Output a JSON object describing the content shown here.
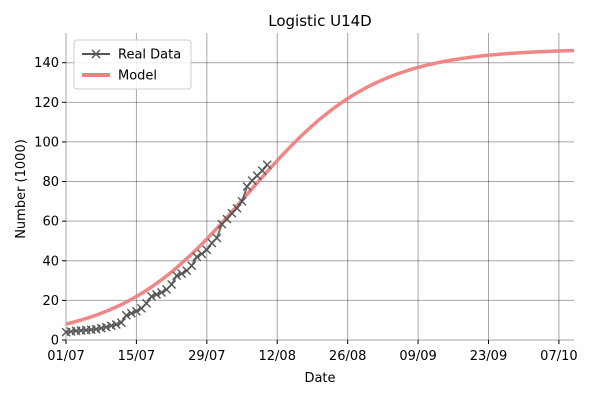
{
  "chart_data": {
    "type": "line",
    "title": "Logistic U14D",
    "xlabel": "Date",
    "ylabel": "Number (1000)",
    "x_axis": {
      "unit": "day-of-year-2020",
      "range": [
        "01/07",
        "10/10"
      ],
      "ticks": [
        {
          "label": "01/07",
          "date": "2020-07-01"
        },
        {
          "label": "15/07",
          "date": "2020-07-15"
        },
        {
          "label": "29/07",
          "date": "2020-07-29"
        },
        {
          "label": "12/08",
          "date": "2020-08-12"
        },
        {
          "label": "26/08",
          "date": "2020-08-26"
        },
        {
          "label": "09/09",
          "date": "2020-09-09"
        },
        {
          "label": "23/09",
          "date": "2020-09-23"
        },
        {
          "label": "07/10",
          "date": "2020-10-07"
        }
      ]
    },
    "ylim": [
      0,
      155
    ],
    "yticks": [
      0,
      20,
      40,
      60,
      80,
      100,
      120,
      140
    ],
    "grid": true,
    "legend_position": "top-left",
    "series": [
      {
        "name": "Real Data",
        "color": "#555555",
        "marker": "x",
        "points": [
          [
            "2020-07-01",
            4.0
          ],
          [
            "2020-07-02",
            4.3
          ],
          [
            "2020-07-03",
            4.6
          ],
          [
            "2020-07-04",
            4.8
          ],
          [
            "2020-07-05",
            5.0
          ],
          [
            "2020-07-06",
            5.2
          ],
          [
            "2020-07-07",
            5.5
          ],
          [
            "2020-07-08",
            6.0
          ],
          [
            "2020-07-09",
            6.5
          ],
          [
            "2020-07-10",
            7.2
          ],
          [
            "2020-07-11",
            7.8
          ],
          [
            "2020-07-12",
            8.8
          ],
          [
            "2020-07-13",
            12.5
          ],
          [
            "2020-07-14",
            13.5
          ],
          [
            "2020-07-15",
            14.5
          ],
          [
            "2020-07-16",
            16.0
          ],
          [
            "2020-07-17",
            18.5
          ],
          [
            "2020-07-18",
            22.0
          ],
          [
            "2020-07-19",
            23.0
          ],
          [
            "2020-07-20",
            24.0
          ],
          [
            "2020-07-21",
            25.5
          ],
          [
            "2020-07-22",
            28.0
          ],
          [
            "2020-07-23",
            32.5
          ],
          [
            "2020-07-24",
            33.5
          ],
          [
            "2020-07-25",
            35.0
          ],
          [
            "2020-07-26",
            37.5
          ],
          [
            "2020-07-27",
            42.0
          ],
          [
            "2020-07-28",
            43.5
          ],
          [
            "2020-07-29",
            45.5
          ],
          [
            "2020-07-30",
            49.0
          ],
          [
            "2020-07-31",
            51.5
          ],
          [
            "2020-08-01",
            58.5
          ],
          [
            "2020-08-02",
            61.0
          ],
          [
            "2020-08-03",
            64.0
          ],
          [
            "2020-08-04",
            66.5
          ],
          [
            "2020-08-05",
            70.0
          ],
          [
            "2020-08-06",
            77.5
          ],
          [
            "2020-08-07",
            80.5
          ],
          [
            "2020-08-08",
            83.0
          ],
          [
            "2020-08-09",
            85.5
          ],
          [
            "2020-08-10",
            88.5
          ]
        ]
      },
      {
        "name": "Model",
        "color": "#f08080",
        "model": "logistic",
        "K": 147.0,
        "r": 0.079,
        "midpoint_date": "2020-08-06",
        "start": "2020-07-01",
        "end": "2020-10-10"
      }
    ]
  }
}
